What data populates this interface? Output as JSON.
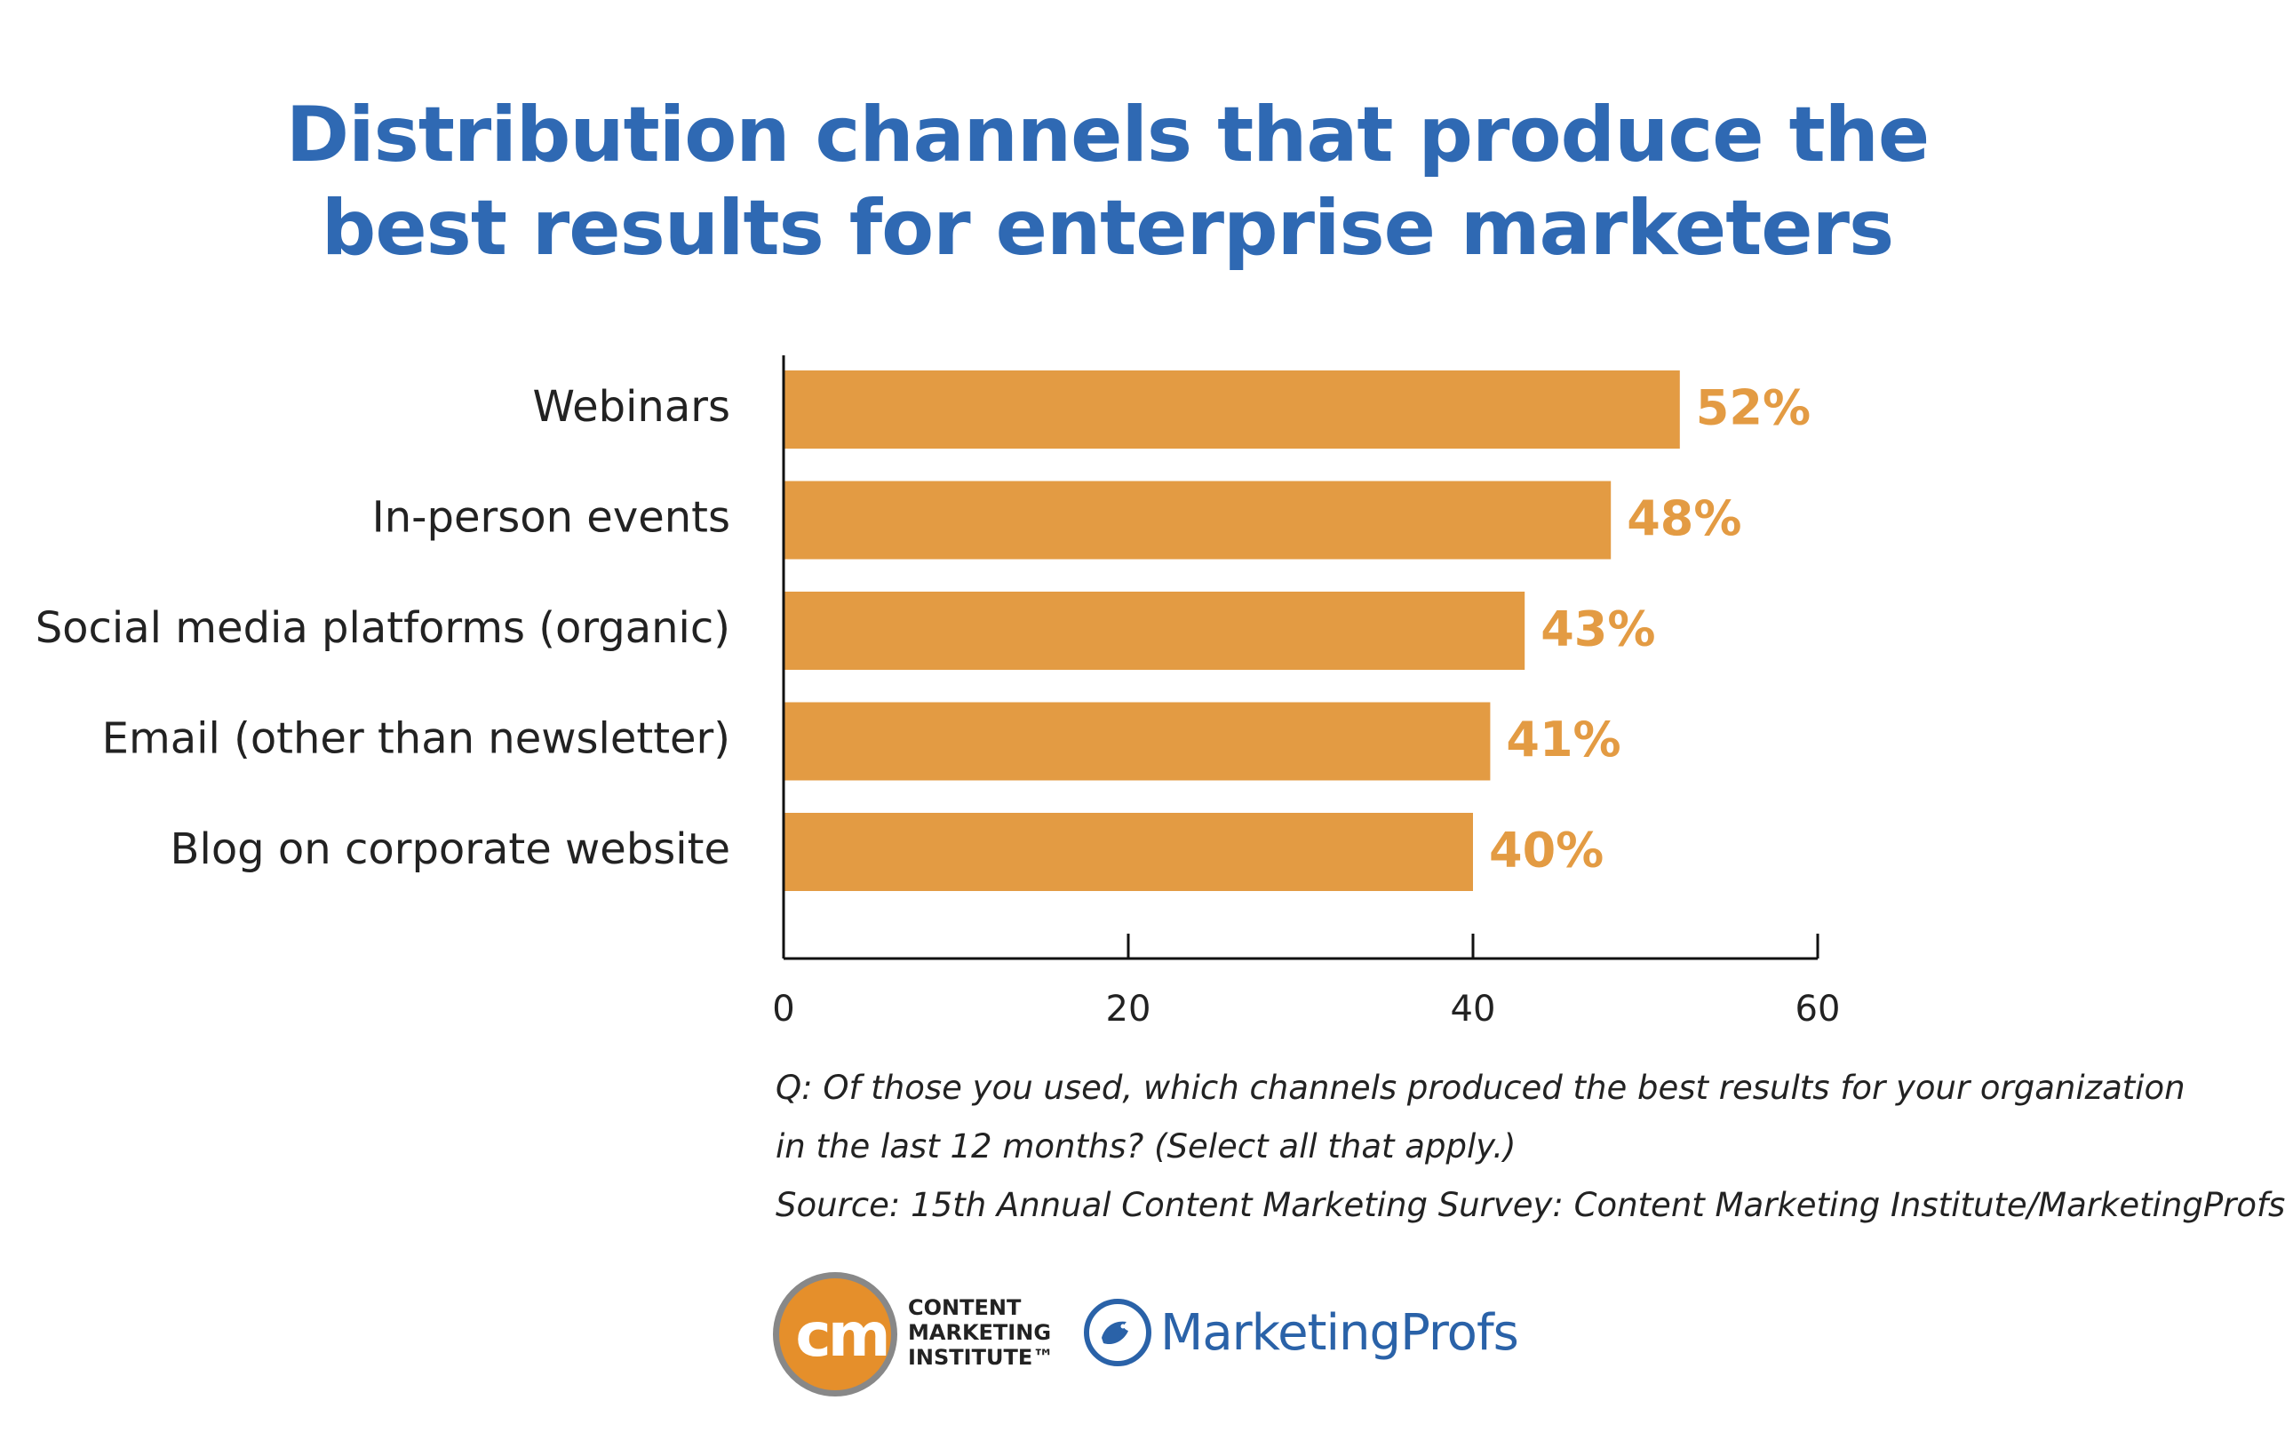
{
  "title_lines": [
    "Distribution channels that produce the",
    "best results for enterprise marketers"
  ],
  "colors": {
    "title": "#2f69b3",
    "bar": "#e39b43",
    "value_label": "#e39b43",
    "axis": "#111111"
  },
  "chart_data": {
    "type": "bar",
    "orientation": "horizontal",
    "categories": [
      "Webinars",
      "In-person events",
      "Social media platforms (organic)",
      "Email (other than newsletter)",
      "Blog on corporate website"
    ],
    "values": [
      52,
      48,
      43,
      41,
      40
    ],
    "value_labels": [
      "52%",
      "48%",
      "43%",
      "41%",
      "40%"
    ],
    "xlim": [
      0,
      60
    ],
    "xticks": [
      0,
      20,
      40,
      60
    ],
    "xlabel": "",
    "ylabel": "",
    "grid": false
  },
  "notes": {
    "question_line1": "Q: Of those you used, which channels produced the best results for your organization",
    "question_line2": "in the last 12 months? (Select all that apply.)",
    "source": "Source: 15th Annual Content Marketing Survey: Content Marketing Institute/MarketingProfs"
  },
  "logos": {
    "cmi_mark": "cm",
    "cmi_lines": [
      "CONTENT",
      "MARKETING",
      "INSTITUTE™"
    ],
    "marketingprofs": "MarketingProfs",
    "marketingprofs_icon": "bird-icon"
  }
}
